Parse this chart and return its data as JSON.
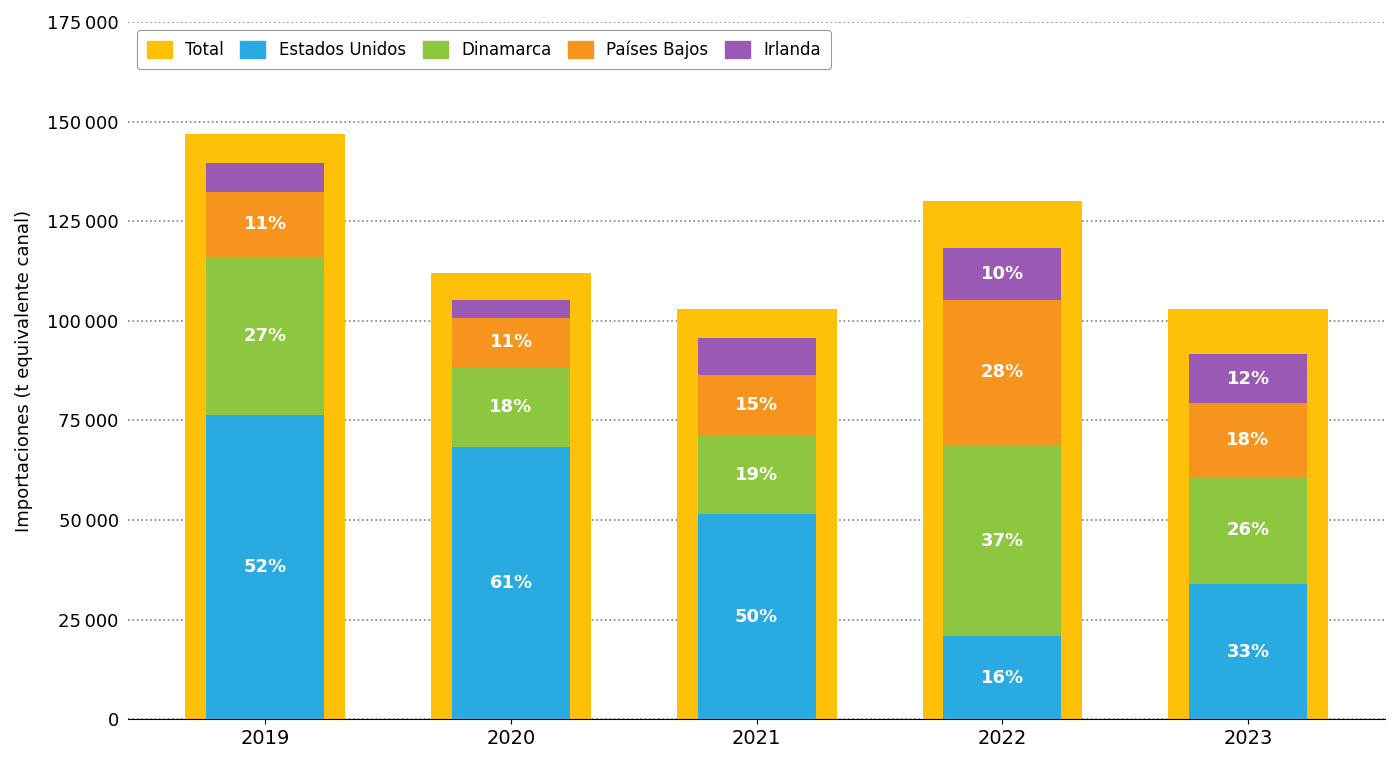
{
  "years": [
    "2019",
    "2020",
    "2021",
    "2022",
    "2023"
  ],
  "totals": [
    147000,
    112000,
    103000,
    130000,
    103000
  ],
  "estados_unidos": [
    76440,
    68320,
    51500,
    20800,
    33990
  ],
  "estados_unidos_pct": [
    "52%",
    "61%",
    "50%",
    "16%",
    "33%"
  ],
  "dinamarca": [
    39690,
    20160,
    19570,
    48100,
    26780
  ],
  "dinamarca_pct": [
    "27%",
    "18%",
    "19%",
    "37%",
    "26%"
  ],
  "paises_bajos": [
    16170,
    12320,
    15450,
    36400,
    18540
  ],
  "paises_bajos_pct": [
    "11%",
    "11%",
    "15%",
    "28%",
    "18%"
  ],
  "irlanda": [
    7350,
    4480,
    9270,
    13000,
    12360
  ],
  "irlanda_pct": [
    "",
    "",
    "",
    "10%",
    "12%"
  ],
  "color_total": "#FFC107",
  "color_estados_unidos": "#29ABE2",
  "color_dinamarca": "#8DC63F",
  "color_paises_bajos": "#F7941D",
  "color_irlanda": "#9B59B6",
  "ylabel": "Importaciones (t equivalente canal)",
  "ylim": [
    0,
    175000
  ],
  "yticks": [
    0,
    25000,
    50000,
    75000,
    100000,
    125000,
    150000,
    175000
  ],
  "legend_labels": [
    "Total",
    "Estados Unidos",
    "Dinamarca",
    "Países Bajos",
    "Irlanda"
  ],
  "background_color": "#FFFFFF",
  "grid_color": "#808080",
  "outer_bar_width": 0.65,
  "inner_bar_width": 0.48
}
